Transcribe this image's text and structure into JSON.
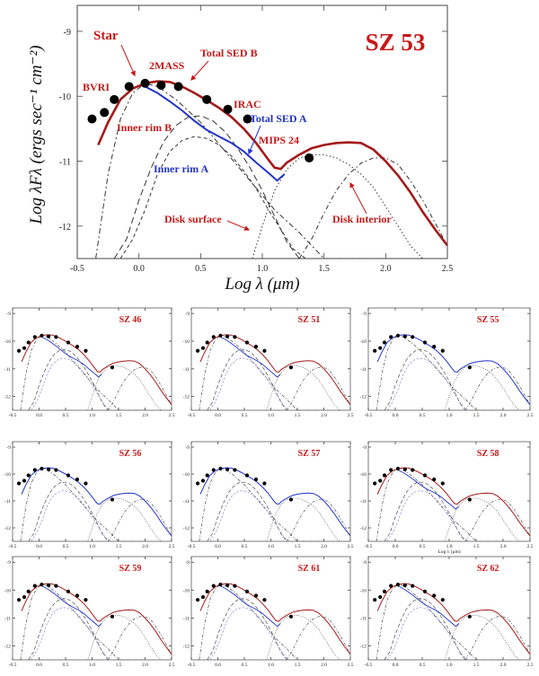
{
  "main_chart": {
    "title": "SZ 53",
    "xlabel": "Log λ (μm)",
    "ylabel": "Log λFλ (ergs sec⁻¹ cm⁻²)",
    "xlim": [
      -0.5,
      2.5
    ],
    "ylim": [
      -12.5,
      -8.6
    ],
    "xticks": [
      "-0.5",
      "0.0",
      "0.5",
      "1.0",
      "1.5",
      "2.0",
      "2.5"
    ],
    "yticks": [
      "-9",
      "-10",
      "-11",
      "-12"
    ],
    "annotations": [
      "Star",
      "BVRI",
      "2MASS",
      "Total SED B",
      "IRAC",
      "Inner rim B",
      "Total SED A",
      "MIPS 24",
      "Inner rim A",
      "Disk surface",
      "Disk interior"
    ]
  },
  "chart_data": [
    {
      "type": "line",
      "title": "SZ 53",
      "xlabel": "Log λ (μm)",
      "ylabel": "Log λFλ (ergs sec⁻¹ cm⁻²)",
      "xlim": [
        -0.5,
        2.5
      ],
      "ylim": [
        -12.5,
        -8.6
      ],
      "colors": {
        "total_b": "#a41a1a",
        "total_a": "#2233cc",
        "components": "#333333",
        "points": "#000000",
        "labels": "#c81818"
      },
      "series": [
        {
          "name": "Total SED B",
          "x": [
            -0.33,
            -0.25,
            -0.15,
            -0.05,
            0.05,
            0.15,
            0.25,
            0.35,
            0.45,
            0.55,
            0.65,
            0.75,
            0.85,
            0.95,
            1.05,
            1.1,
            1.15,
            1.2,
            1.3,
            1.4,
            1.5,
            1.6,
            1.7,
            1.8,
            1.9,
            2.0,
            2.1,
            2.2,
            2.3,
            2.4,
            2.5
          ],
          "y": [
            -10.75,
            -10.4,
            -10.05,
            -9.88,
            -9.8,
            -9.77,
            -9.78,
            -9.85,
            -9.95,
            -10.06,
            -10.18,
            -10.32,
            -10.5,
            -10.72,
            -10.98,
            -11.1,
            -11.12,
            -11.02,
            -10.9,
            -10.8,
            -10.75,
            -10.72,
            -10.71,
            -10.72,
            -10.82,
            -11.0,
            -11.22,
            -11.48,
            -11.78,
            -12.05,
            -12.3
          ]
        },
        {
          "name": "Total SED A",
          "x": [
            0.05,
            0.15,
            0.25,
            0.35,
            0.45,
            0.55,
            0.65,
            0.75,
            0.85,
            0.95,
            1.05,
            1.12,
            1.18
          ],
          "y": [
            -9.85,
            -9.95,
            -10.08,
            -10.22,
            -10.38,
            -10.52,
            -10.62,
            -10.72,
            -10.85,
            -11.02,
            -11.18,
            -11.3,
            -11.2
          ]
        },
        {
          "name": "Star",
          "x": [
            -0.35,
            -0.25,
            -0.15,
            -0.05,
            0.05,
            0.15,
            0.3,
            0.5,
            0.7,
            0.9,
            1.1,
            1.3,
            1.5,
            1.7,
            2.0
          ],
          "y": [
            -12.5,
            -11.2,
            -10.35,
            -9.95,
            -9.8,
            -9.85,
            -10.05,
            -10.4,
            -10.85,
            -11.3,
            -11.75,
            -12.1,
            -12.5,
            -12.5,
            -12.5
          ]
        },
        {
          "name": "Inner rim B",
          "x": [
            -0.2,
            -0.1,
            0.0,
            0.1,
            0.2,
            0.3,
            0.4,
            0.5,
            0.6,
            0.7,
            0.8,
            0.9,
            1.0,
            1.1,
            1.2,
            1.3
          ],
          "y": [
            -12.5,
            -12.2,
            -11.6,
            -11.1,
            -10.7,
            -10.45,
            -10.32,
            -10.3,
            -10.38,
            -10.55,
            -10.8,
            -11.1,
            -11.45,
            -11.85,
            -12.25,
            -12.5
          ]
        },
        {
          "name": "Inner rim A",
          "x": [
            -0.15,
            -0.05,
            0.05,
            0.15,
            0.25,
            0.35,
            0.45,
            0.55,
            0.65,
            0.75,
            0.85,
            0.95,
            1.05,
            1.15,
            1.25,
            1.35
          ],
          "y": [
            -12.5,
            -12.2,
            -11.75,
            -11.2,
            -10.85,
            -10.68,
            -10.62,
            -10.65,
            -10.75,
            -10.92,
            -11.15,
            -11.42,
            -11.75,
            -12.05,
            -12.35,
            -12.5
          ]
        },
        {
          "name": "Disk surface",
          "x": [
            0.92,
            1.0,
            1.1,
            1.2,
            1.3,
            1.4,
            1.5,
            1.6,
            1.7,
            1.8,
            1.9,
            2.0,
            2.1,
            2.2,
            2.3
          ],
          "y": [
            -12.5,
            -12.0,
            -11.45,
            -11.12,
            -10.95,
            -10.9,
            -10.9,
            -10.95,
            -11.05,
            -11.2,
            -11.4,
            -11.7,
            -12.0,
            -12.3,
            -12.5
          ]
        },
        {
          "name": "Disk interior",
          "x": [
            1.3,
            1.4,
            1.5,
            1.6,
            1.7,
            1.8,
            1.9,
            2.0,
            2.1,
            2.2,
            2.3,
            2.4,
            2.5
          ],
          "y": [
            -12.5,
            -12.2,
            -11.8,
            -11.45,
            -11.2,
            -11.03,
            -10.95,
            -10.95,
            -11.05,
            -11.3,
            -11.6,
            -11.95,
            -12.3
          ]
        }
      ],
      "points": {
        "x": [
          -0.38,
          -0.28,
          -0.2,
          -0.08,
          0.05,
          0.18,
          0.32,
          0.55,
          0.72,
          0.88,
          1.38
        ],
        "y": [
          -10.35,
          -10.25,
          -10.05,
          -9.85,
          -9.8,
          -9.83,
          -9.85,
          -10.05,
          -10.2,
          -10.35,
          -10.95
        ]
      }
    },
    {
      "type": "line",
      "title": "SZ 46",
      "ylim": [
        -12.5,
        -8.8
      ]
    },
    {
      "type": "line",
      "title": "SZ 51",
      "ylim": [
        -12.5,
        -8.8
      ]
    },
    {
      "type": "line",
      "title": "SZ 55",
      "ylim": [
        -12.5,
        -8.8
      ]
    },
    {
      "type": "line",
      "title": "SZ 56",
      "ylim": [
        -12.5,
        -8.8
      ]
    },
    {
      "type": "line",
      "title": "SZ 57",
      "ylim": [
        -12.5,
        -8.8
      ]
    },
    {
      "type": "line",
      "title": "SZ 58",
      "xlabel": "Log λ (μm)",
      "ylim": [
        -12.5,
        -8.8
      ]
    },
    {
      "type": "line",
      "title": "SZ 59",
      "ylim": [
        -12.5,
        -8.8
      ]
    },
    {
      "type": "line",
      "title": "SZ 61",
      "ylim": [
        -12.5,
        -8.8
      ]
    },
    {
      "type": "line",
      "title": "SZ 62",
      "ylim": [
        -12.5,
        -8.8
      ]
    }
  ],
  "small_panels": [
    {
      "title": "SZ 46",
      "has_red": true
    },
    {
      "title": "SZ 51",
      "has_red": true
    },
    {
      "title": "SZ 55",
      "has_red": false
    },
    {
      "title": "SZ 56",
      "has_red": false
    },
    {
      "title": "SZ 57",
      "has_red": false
    },
    {
      "title": "SZ 58",
      "has_red": true,
      "xlabel": "Log λ (μm)"
    },
    {
      "title": "SZ 59",
      "has_red": true
    },
    {
      "title": "SZ 61",
      "has_red": true
    },
    {
      "title": "SZ 62",
      "has_red": true
    }
  ],
  "small_axis": {
    "xticks": [
      "-0.5",
      "0.0",
      "0.5",
      "1.0",
      "1.5",
      "2.0",
      "2.5"
    ],
    "yticks": [
      "-9",
      "-10",
      "-11",
      "-12"
    ]
  }
}
